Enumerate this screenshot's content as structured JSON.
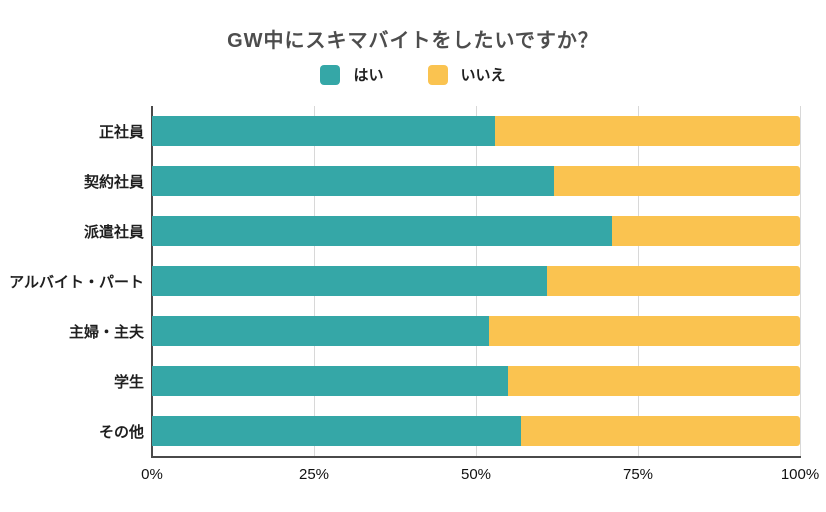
{
  "title": "GW中にスキマバイトをしたいですか？",
  "legend": {
    "items": [
      {
        "label": "はい",
        "color": "#35a7a7"
      },
      {
        "label": "いいえ",
        "color": "#fac350"
      }
    ]
  },
  "chart_data": {
    "type": "bar",
    "orientation": "horizontal",
    "stacked": true,
    "percent_stacked": true,
    "title": "GW中にスキマバイトをしたいですか？",
    "categories": [
      "正社員",
      "契約社員",
      "派遣社員",
      "アルバイト・パート",
      "主婦・主夫",
      "学生",
      "その他"
    ],
    "series": [
      {
        "name": "はい",
        "color": "#35a7a7",
        "values": [
          53,
          62,
          71,
          61,
          52,
          55,
          57
        ]
      },
      {
        "name": "いいえ",
        "color": "#fac350",
        "values": [
          47,
          38,
          29,
          39,
          48,
          45,
          43
        ]
      }
    ],
    "xlabel": "",
    "ylabel": "",
    "xlim": [
      0,
      100
    ],
    "x_ticks": [
      {
        "label": "0%",
        "value": 0
      },
      {
        "label": "25%",
        "value": 25
      },
      {
        "label": "50%",
        "value": 50
      },
      {
        "label": "75%",
        "value": 75
      },
      {
        "label": "100%",
        "value": 100
      }
    ],
    "grid": "vertical",
    "legend_position": "top",
    "colors": {
      "yes": "#35a7a7",
      "no": "#fac350",
      "axis": "#4a4a4a",
      "gridline": "#d8d8d8",
      "title_text": "#4d4d4d",
      "label_text": "#1f1f1f"
    }
  }
}
